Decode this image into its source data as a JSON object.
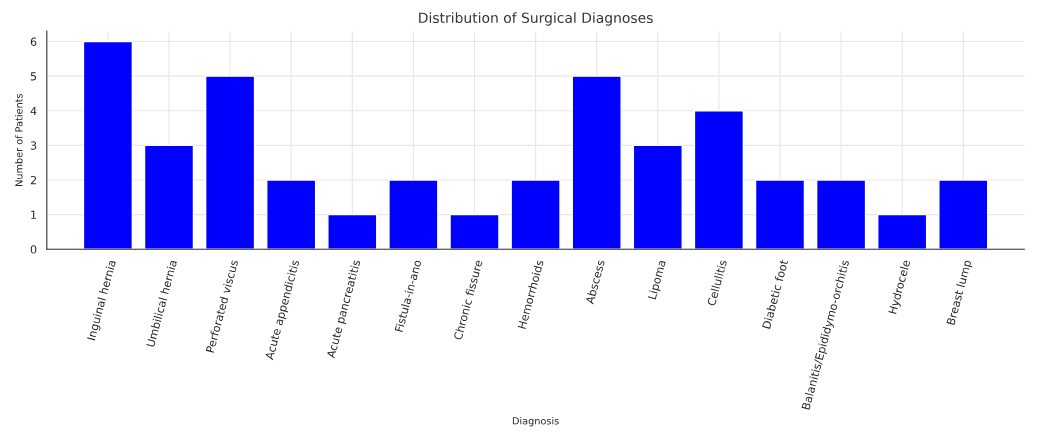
{
  "chart_data": {
    "type": "bar",
    "title": "Distribution of Surgical Diagnoses",
    "xlabel": "Diagnosis",
    "ylabel": "Number of Patients",
    "categories": [
      "Inguinal hernia",
      "Umbilical hernia",
      "Perforated viscus",
      "Acute appendicitis",
      "Acute pancreatitis",
      "Fistula-in-ano",
      "Chronic fissure",
      "Hemorrhoids",
      "Abscess",
      "Lipoma",
      "Cellulitis",
      "Diabetic foot",
      "Balanitis/Epididymo-orchitis",
      "Hydrocele",
      "Breast lump"
    ],
    "values": [
      6,
      3,
      5,
      2,
      1,
      2,
      1,
      2,
      5,
      3,
      4,
      2,
      2,
      1,
      2
    ],
    "color": "#0000ff",
    "ylim": [
      0,
      6.3
    ],
    "yticks": [
      0,
      1,
      2,
      3,
      4,
      5,
      6
    ],
    "grid": true
  }
}
